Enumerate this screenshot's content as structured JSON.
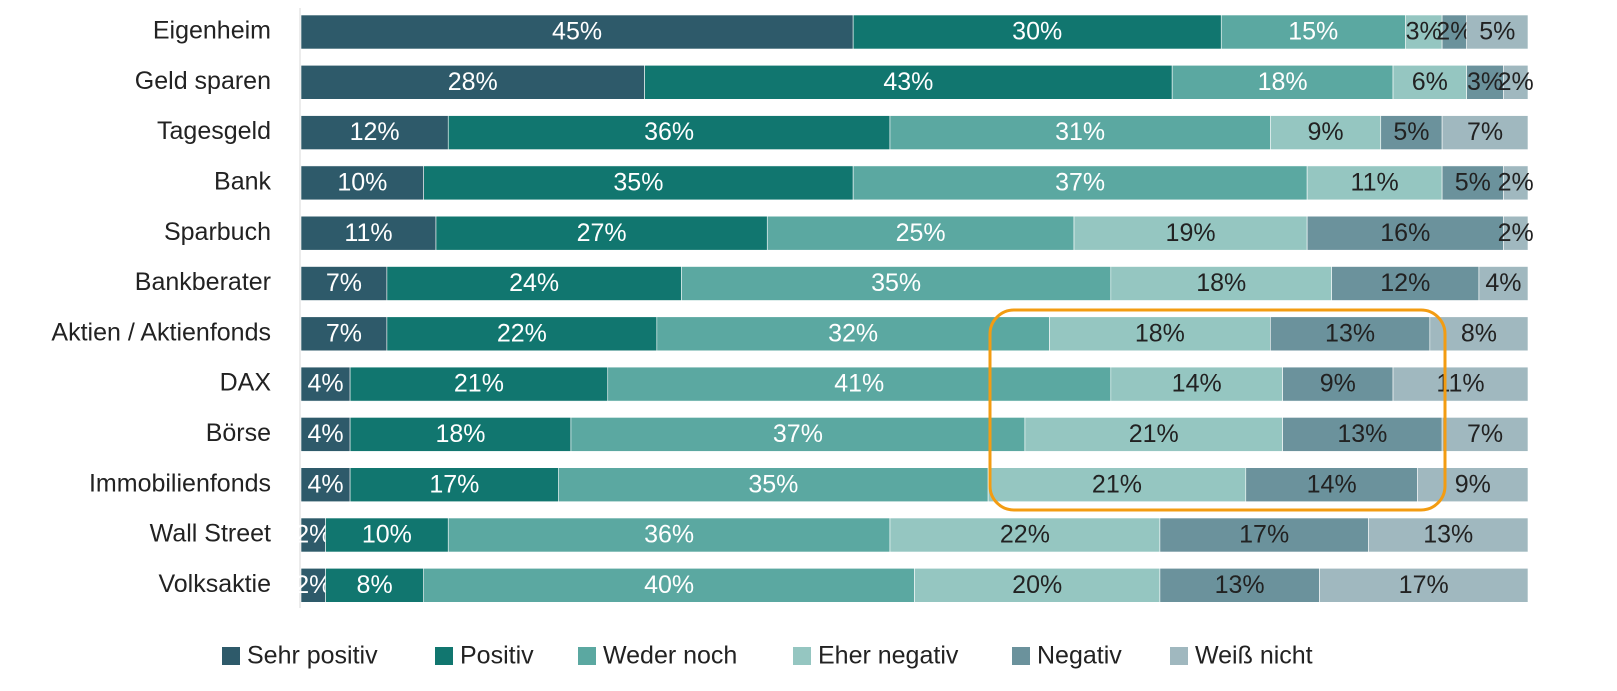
{
  "chart_data": {
    "type": "stacked_barh",
    "categories": [
      "Eigenheim",
      "Geld sparen",
      "Tagesgeld",
      "Bank",
      "Sparbuch",
      "Bankberater",
      "Aktien / Aktienfonds",
      "DAX",
      "Börse",
      "Immobilienfonds",
      "Wall Street",
      "Volksaktie"
    ],
    "xlim": [
      0,
      100
    ],
    "legend": "bottom",
    "series": [
      {
        "name": "Sehr positiv",
        "color": "#2e5a6a",
        "values": [
          45,
          28,
          12,
          10,
          11,
          7,
          7,
          4,
          4,
          4,
          2,
          2
        ],
        "value_labels": [
          "45%",
          "28%",
          "12%",
          "10%",
          "11%",
          "7%",
          "7%",
          "4%",
          "4%",
          "4%",
          "2%",
          "2%"
        ]
      },
      {
        "name": "Positiv",
        "color": "#11766f",
        "values": [
          30,
          43,
          36,
          35,
          27,
          24,
          22,
          21,
          18,
          17,
          10,
          8
        ],
        "value_labels": [
          "30%",
          "43%",
          "36%",
          "35%",
          "27%",
          "24%",
          "22%",
          "21%",
          "18%",
          "17%",
          "10%",
          "8%"
        ]
      },
      {
        "name": "Weder noch",
        "color": "#5ba8a1",
        "values": [
          15,
          18,
          31,
          37,
          25,
          35,
          32,
          41,
          37,
          35,
          36,
          40
        ],
        "value_labels": [
          "15%",
          "18%",
          "31%",
          "37%",
          "25%",
          "35%",
          "32%",
          "41%",
          "37%",
          "35%",
          "36%",
          "40%"
        ]
      },
      {
        "name": "Eher negativ",
        "color": "#95c6c1",
        "values": [
          3,
          6,
          9,
          11,
          19,
          18,
          18,
          14,
          21,
          21,
          22,
          20
        ],
        "value_labels": [
          "3%",
          "6%",
          "9%",
          "11%",
          "19%",
          "18%",
          "18%",
          "14%",
          "21%",
          "21%",
          "22%",
          "20%"
        ]
      },
      {
        "name": "Negativ",
        "color": "#6b929c",
        "values": [
          2,
          3,
          5,
          5,
          16,
          12,
          13,
          9,
          13,
          14,
          17,
          13
        ],
        "value_labels": [
          "2%",
          "3%",
          "5%",
          "5%",
          "16%",
          "12%",
          "13%",
          "9%",
          "13%",
          "14%",
          "17%",
          "13%"
        ]
      },
      {
        "name": "Weiß nicht",
        "color": "#a0b8bf",
        "values": [
          5,
          2,
          7,
          2,
          2,
          4,
          8,
          11,
          7,
          9,
          13,
          17
        ],
        "value_labels": [
          "5%",
          "2%",
          "7%",
          "2%",
          "2%",
          "4%",
          "8%",
          "11%",
          "7%",
          "9%",
          "13%",
          "17%"
        ]
      }
    ]
  }
}
